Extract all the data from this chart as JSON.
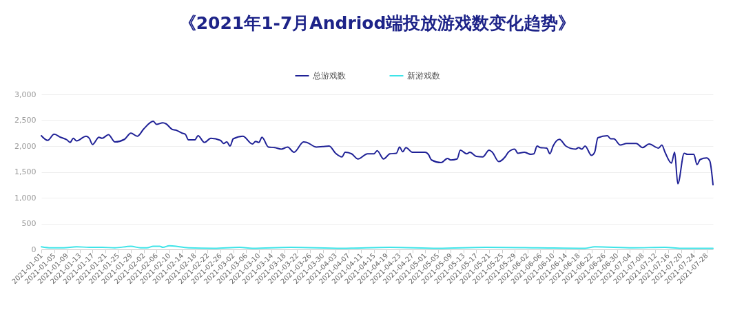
{
  "chart_data": {
    "type": "line",
    "title": "《2021年1-7月Andriod端投放游戏数变化趋势》",
    "xlim": [
      "2021-01-01",
      "2021-07-30"
    ],
    "xticks": [
      "2021-01-01",
      "2021-01-05",
      "2021-01-09",
      "2021-01-13",
      "2021-01-17",
      "2021-01-21",
      "2021-01-25",
      "2021-01-29",
      "2021-02-02",
      "2021-02-06",
      "2021-02-10",
      "2021-02-14",
      "2021-02-18",
      "2021-02-22",
      "2021-02-26",
      "2021-03-02",
      "2021-03-06",
      "2021-03-10",
      "2021-03-14",
      "2021-03-18",
      "2021-03-22",
      "2021-03-26",
      "2021-03-30",
      "2021-04-03",
      "2021-04-07",
      "2021-04-11",
      "2021-04-15",
      "2021-04-19",
      "2021-04-23",
      "2021-04-27",
      "2021-05-01",
      "2021-05-05",
      "2021-05-09",
      "2021-05-13",
      "2021-05-17",
      "2021-05-21",
      "2021-05-25",
      "2021-05-29",
      "2021-06-02",
      "2021-06-06",
      "2021-06-10",
      "2021-06-14",
      "2021-06-18",
      "2021-06-22",
      "2021-06-26",
      "2021-06-30",
      "2021-07-04",
      "2021-07-08",
      "2021-07-12",
      "2021-07-16",
      "2021-07-20",
      "2021-07-24",
      "2021-07-28"
    ],
    "ylim": [
      0,
      3000
    ],
    "yticks": [
      {
        "value": 0,
        "label": "0"
      },
      {
        "value": 500,
        "label": "500"
      },
      {
        "value": 1000,
        "label": "1,000"
      },
      {
        "value": 1500,
        "label": "1,500"
      },
      {
        "value": 2000,
        "label": "2,000"
      },
      {
        "value": 2500,
        "label": "2,500"
      },
      {
        "value": 3000,
        "label": "3,000"
      }
    ],
    "grid": "y",
    "legend": "top",
    "series": [
      {
        "name": "总游戏数",
        "color": "#1f2196",
        "x": [
          "2021-01-01",
          "2021-01-03",
          "2021-01-05",
          "2021-01-07",
          "2021-01-09",
          "2021-01-10",
          "2021-01-11",
          "2021-01-12",
          "2021-01-15",
          "2021-01-16",
          "2021-01-17",
          "2021-01-19",
          "2021-01-20",
          "2021-01-22",
          "2021-01-24",
          "2021-01-27",
          "2021-01-29",
          "2021-01-31",
          "2021-02-02",
          "2021-02-05",
          "2021-02-06",
          "2021-02-08",
          "2021-02-09",
          "2021-02-11",
          "2021-02-12",
          "2021-02-14",
          "2021-02-15",
          "2021-02-16",
          "2021-02-18",
          "2021-02-19",
          "2021-02-21",
          "2021-02-23",
          "2021-02-26",
          "2021-02-27",
          "2021-02-28",
          "2021-03-01",
          "2021-03-02",
          "2021-03-05",
          "2021-03-08",
          "2021-03-09",
          "2021-03-10",
          "2021-03-11",
          "2021-03-13",
          "2021-03-15",
          "2021-03-17",
          "2021-03-19",
          "2021-03-21",
          "2021-03-24",
          "2021-03-25",
          "2021-03-28",
          "2021-03-30",
          "2021-04-01",
          "2021-04-03",
          "2021-04-05",
          "2021-04-06",
          "2021-04-08",
          "2021-04-10",
          "2021-04-13",
          "2021-04-15",
          "2021-04-16",
          "2021-04-18",
          "2021-04-20",
          "2021-04-22",
          "2021-04-23",
          "2021-04-24",
          "2021-04-25",
          "2021-04-27",
          "2021-04-29",
          "2021-05-01",
          "2021-05-02",
          "2021-05-03",
          "2021-05-06",
          "2021-05-08",
          "2021-05-09",
          "2021-05-11",
          "2021-05-12",
          "2021-05-14",
          "2021-05-15",
          "2021-05-17",
          "2021-05-19",
          "2021-05-21",
          "2021-05-22",
          "2021-05-24",
          "2021-05-26",
          "2021-05-27",
          "2021-05-29",
          "2021-05-30",
          "2021-06-01",
          "2021-06-03",
          "2021-06-04",
          "2021-06-05",
          "2021-06-06",
          "2021-06-08",
          "2021-06-09",
          "2021-06-10",
          "2021-06-12",
          "2021-06-14",
          "2021-06-17",
          "2021-06-18",
          "2021-06-19",
          "2021-06-20",
          "2021-06-22",
          "2021-06-23",
          "2021-06-24",
          "2021-06-27",
          "2021-06-28",
          "2021-06-29",
          "2021-07-01",
          "2021-07-03",
          "2021-07-06",
          "2021-07-08",
          "2021-07-10",
          "2021-07-13",
          "2021-07-14",
          "2021-07-15",
          "2021-07-17",
          "2021-07-18",
          "2021-07-19",
          "2021-07-21",
          "2021-07-22",
          "2021-07-24",
          "2021-07-25",
          "2021-07-26",
          "2021-07-28",
          "2021-07-29",
          "2021-07-30"
        ],
        "values": [
          2200,
          2110,
          2230,
          2170,
          2120,
          2070,
          2150,
          2100,
          2190,
          2150,
          2030,
          2170,
          2150,
          2220,
          2080,
          2130,
          2250,
          2190,
          2330,
          2480,
          2420,
          2450,
          2430,
          2320,
          2310,
          2250,
          2230,
          2120,
          2120,
          2200,
          2070,
          2150,
          2110,
          2050,
          2080,
          2000,
          2140,
          2190,
          2040,
          2090,
          2070,
          2170,
          1980,
          1970,
          1940,
          1980,
          1880,
          2080,
          2070,
          1980,
          1990,
          2000,
          1860,
          1790,
          1880,
          1850,
          1750,
          1850,
          1850,
          1910,
          1750,
          1850,
          1860,
          1980,
          1890,
          1970,
          1880,
          1880,
          1880,
          1840,
          1730,
          1680,
          1760,
          1730,
          1750,
          1920,
          1850,
          1880,
          1800,
          1790,
          1920,
          1880,
          1700,
          1790,
          1880,
          1940,
          1860,
          1880,
          1840,
          1850,
          2000,
          1970,
          1960,
          1850,
          2000,
          2130,
          2000,
          1940,
          1970,
          1940,
          2000,
          1820,
          1880,
          2160,
          2200,
          2140,
          2140,
          2020,
          2050,
          2050,
          1970,
          2040,
          1960,
          2020,
          1880,
          1670,
          1880,
          1270,
          1860,
          1840,
          1840,
          1640,
          1740,
          1770,
          1710,
          1250
        ]
      },
      {
        "name": "新游戏数",
        "color": "#3ee4e8",
        "x": [
          "2021-01-01",
          "2021-01-04",
          "2021-01-08",
          "2021-01-12",
          "2021-01-16",
          "2021-01-20",
          "2021-01-24",
          "2021-01-29",
          "2021-02-01",
          "2021-02-03",
          "2021-02-05",
          "2021-02-07",
          "2021-02-08",
          "2021-02-10",
          "2021-02-16",
          "2021-02-24",
          "2021-03-04",
          "2021-03-08",
          "2021-03-20",
          "2021-04-05",
          "2021-04-20",
          "2021-05-05",
          "2021-05-20",
          "2021-06-05",
          "2021-06-20",
          "2021-06-23",
          "2021-07-05",
          "2021-07-15",
          "2021-07-20",
          "2021-07-30"
        ],
        "values": [
          50,
          30,
          30,
          50,
          40,
          40,
          30,
          60,
          30,
          30,
          60,
          60,
          40,
          70,
          30,
          20,
          40,
          20,
          40,
          20,
          40,
          20,
          40,
          30,
          20,
          50,
          30,
          40,
          20,
          20
        ]
      }
    ]
  }
}
